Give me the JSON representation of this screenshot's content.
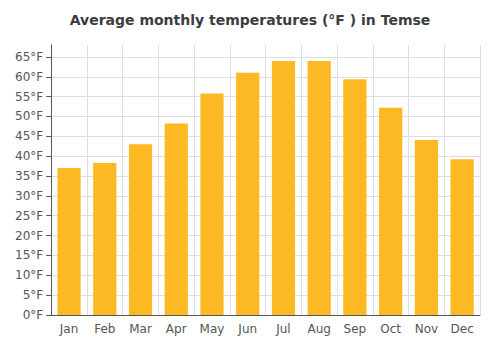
{
  "chart_data": {
    "type": "bar",
    "title": "Average monthly temperatures (°F ) in Temse",
    "categories": [
      "Jan",
      "Feb",
      "Mar",
      "Apr",
      "May",
      "Jun",
      "Jul",
      "Aug",
      "Sep",
      "Oct",
      "Nov",
      "Dec"
    ],
    "values": [
      37.0,
      38.3,
      43.0,
      48.2,
      55.8,
      61.0,
      64.0,
      64.0,
      59.4,
      52.2,
      44.1,
      39.2
    ],
    "color": "#FDB924",
    "ylim": [
      0,
      68
    ],
    "yticks": [
      {
        "value": 0,
        "label": "0°F"
      },
      {
        "value": 5,
        "label": "5°F"
      },
      {
        "value": 10,
        "label": "10°F"
      },
      {
        "value": 15,
        "label": "15°F"
      },
      {
        "value": 20,
        "label": "20°F"
      },
      {
        "value": 25,
        "label": "25°F"
      },
      {
        "value": 30,
        "label": "30°F"
      },
      {
        "value": 35,
        "label": "35°F"
      },
      {
        "value": 40,
        "label": "40°F"
      },
      {
        "value": 45,
        "label": "45°F"
      },
      {
        "value": 50,
        "label": "50°F"
      },
      {
        "value": 55,
        "label": "55°F"
      },
      {
        "value": 60,
        "label": "60°F"
      },
      {
        "value": 65,
        "label": "65°F"
      }
    ],
    "grid": true
  }
}
